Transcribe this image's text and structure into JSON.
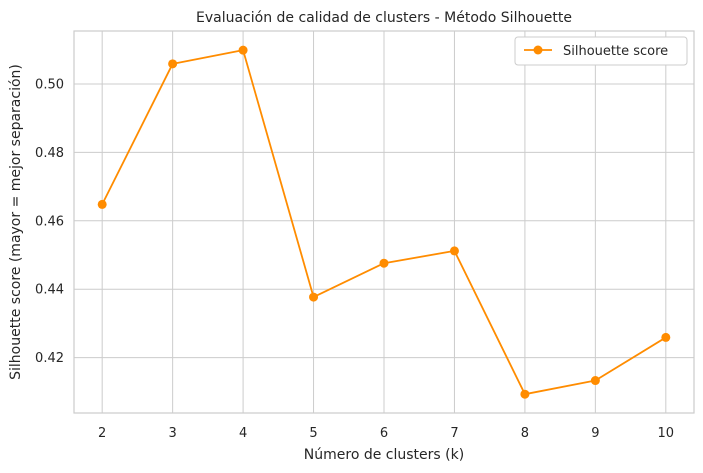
{
  "chart_data": {
    "type": "line",
    "title": "Evaluación de calidad de clusters - Método Silhouette",
    "xlabel": "Número de clusters (k)",
    "ylabel": "Silhouette score (mayor = mejor separación)",
    "x": [
      2,
      3,
      4,
      5,
      6,
      7,
      8,
      9,
      10
    ],
    "series": [
      {
        "name": "Silhouette score",
        "color": "#ff8c00",
        "marker": "circle",
        "values": [
          0.4648,
          0.5059,
          0.5099,
          0.4377,
          0.4476,
          0.4512,
          0.4093,
          0.4133,
          0.4259
        ]
      }
    ],
    "xlim": [
      1.6,
      10.4
    ],
    "ylim": [
      0.4038,
      0.5155
    ],
    "yticks": [
      0.42,
      0.44,
      0.46,
      0.48,
      0.5
    ],
    "ytick_labels": [
      "0.42",
      "0.44",
      "0.46",
      "0.48",
      "0.50"
    ],
    "xticks": [
      2,
      3,
      4,
      5,
      6,
      7,
      8,
      9,
      10
    ],
    "xtick_labels": [
      "2",
      "3",
      "4",
      "5",
      "6",
      "7",
      "8",
      "9",
      "10"
    ],
    "grid": true,
    "legend": "top-right"
  }
}
